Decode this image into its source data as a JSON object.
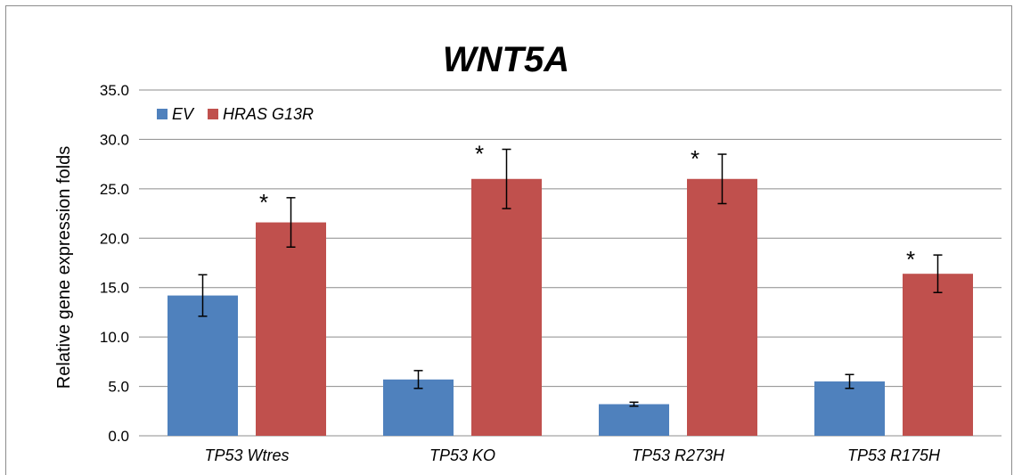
{
  "chart_data": {
    "type": "bar",
    "title": "WNT5A",
    "xlabel": "",
    "ylabel": "Relative gene expression folds",
    "categories": [
      "TP53 Wtres",
      "TP53 KO",
      "TP53 R273H",
      "TP53 R175H"
    ],
    "yticks": [
      "0.0",
      "5.0",
      "10.0",
      "15.0",
      "20.0",
      "25.0",
      "30.0",
      "35.0"
    ],
    "ylim": [
      0,
      35
    ],
    "grid": true,
    "legend_position": "top-left",
    "series": [
      {
        "name": "EV",
        "color": "#4f81bd",
        "values": [
          14.2,
          5.7,
          3.2,
          5.5
        ],
        "errors": [
          2.1,
          0.9,
          0.2,
          0.7
        ]
      },
      {
        "name": "HRAS G13R",
        "color": "#c0504d",
        "values": [
          21.6,
          26.0,
          26.0,
          16.4
        ],
        "errors": [
          2.5,
          3.0,
          2.5,
          1.9
        ]
      }
    ],
    "significance_marker": "*",
    "significant": [
      [
        false,
        true
      ],
      [
        false,
        true
      ],
      [
        false,
        true
      ],
      [
        false,
        true
      ]
    ]
  }
}
